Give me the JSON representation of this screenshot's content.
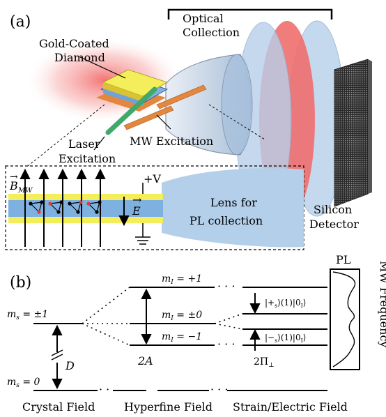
{
  "panel_a": {
    "label": "(a)",
    "optical_collection": [
      "Optical",
      "Collection"
    ],
    "gold_diamond": [
      "Gold-Coated",
      "Diamond"
    ],
    "laser_excitation": [
      "Laser",
      "Excitation"
    ],
    "mw_excitation": "MW Excitation",
    "silicon_detector": [
      "Silicon",
      "Detector"
    ],
    "b_field": "B",
    "b_sub": "MW",
    "e_field": "E",
    "voltage": "+V",
    "lens_label": [
      "Lens for",
      "PL collection"
    ]
  },
  "panel_b": {
    "label": "(b)",
    "ms_pm1": "m",
    "ms_pm1_rest": " = ±1",
    "ms_0_rest": " = 0",
    "mi_p1_rest": " = +1",
    "mi_0_rest": " = ±0",
    "mi_m1_rest": " = −1",
    "D": "D",
    "two_A": "2A",
    "two_pi": "2Π",
    "ket_plus": "|+",
    "ket_plus_rest": "⟩(1)|0",
    "ket_minus": "|−",
    "ket_minus_rest": "⟩(1)|0",
    "pl_label": "PL",
    "mw_frequency": "MW Frequency",
    "crystal_field": "Crystal Field",
    "hyperfine_field": "Hyperfine Field",
    "strain_field": "Strain/Electric Field"
  },
  "colors": {
    "gold": "#f4ee5a",
    "diamond_blue": "#7fb1e0",
    "laser_green": "#3fa86a",
    "copper": "#e2873d",
    "lens_blue": "#b3cfea",
    "lens_red": "#ef6b6b",
    "glow_red": "#f06060"
  }
}
